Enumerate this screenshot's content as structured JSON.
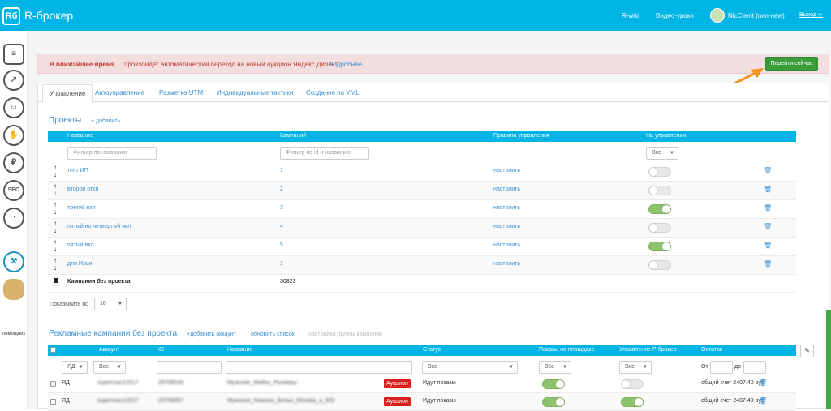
{
  "header": {
    "logo_text": "Rб",
    "brand": "R-брокер",
    "nav_wiki": "R-wiki",
    "nav_video": "Видео-уроки",
    "user": "NicClient (nxn-new)",
    "logout": "Выход"
  },
  "sidebar": {
    "icons": [
      "document-icon",
      "chart-icon",
      "user-icon",
      "thumbs-up-icon",
      "ruble-icon",
      "seo-icon",
      "speedometer-icon",
      "hammer-icon",
      "assistant-avatar-icon"
    ],
    "seo_label": "SEO",
    "ruble_label": "₽",
    "assistant_label": "помощник"
  },
  "alert": {
    "bold": "В ближайшее время",
    "text": "произойдет автоматический переход на новый аукцион Яндекс Директ",
    "link": "подробнее",
    "button": "Перейти сейчас"
  },
  "tabs": [
    "Управление",
    "Автоуправление",
    "Разметка UTM",
    "Индивидуальные тактики",
    "Создание по YML"
  ],
  "projects": {
    "title": "Проекты",
    "add": "+ добавить",
    "columns": [
      "Название",
      "Кампаний",
      "Правила управления",
      "На управлении"
    ],
    "filter_name_placeholder": "Фильтр по названию",
    "filter_id_placeholder": "Фильтр по id и названию",
    "filter_managed": "Все",
    "rows": [
      {
        "name": "тест ИП",
        "count": "1",
        "rule": "настроить",
        "on": false
      },
      {
        "name": "второй откл",
        "count": "2",
        "rule": "настроить",
        "on": false
      },
      {
        "name": "третий вкл",
        "count": "3",
        "rule": "настроить",
        "on": true
      },
      {
        "name": "пятый но четвертый вкл",
        "count": "4",
        "rule": "настроить",
        "on": false
      },
      {
        "name": "пятый вкл",
        "count": "5",
        "rule": "настроить",
        "on": true
      },
      {
        "name": "для Ильи",
        "count": "1",
        "rule": "настроить",
        "on": false
      }
    ],
    "no_project_label": "Кампании без проекта",
    "no_project_count": "30823",
    "per_page_label": "Показывать по",
    "per_page_value": "10"
  },
  "campaigns": {
    "title": "Рекламные кампании без проекта",
    "add_account": "+добавить аккаунт",
    "refresh": "обновить список",
    "group_settings": "настройка группы кампаний",
    "columns": [
      "Аккаунт",
      "ID",
      "Название",
      "Статус",
      "Показы на площадке",
      "Управление Р-брокер",
      "Остаток"
    ],
    "filter_account": "ЯД",
    "filter_all": "Все",
    "filter_from": "От",
    "filter_to": "до",
    "rows": [
      {
        "platform": "ЯД",
        "account": "superman12017",
        "id": "29708049",
        "name": "Мужские_Майки_Размеры",
        "badge": "Аукцион",
        "status": "Идут показы",
        "shows": true,
        "managed": false,
        "balance": "общий счет 2407.40 руб"
      },
      {
        "platform": "ЯД",
        "account": "superman12017",
        "id": "29708067",
        "name": "Мужское_Нижнее_Белье_Москва_и_МО",
        "badge": "Аукцион",
        "status": "Идут показы",
        "shows": true,
        "managed": true,
        "balance": "общий счет 2407.40 руб"
      }
    ]
  },
  "colors": {
    "primary": "#00b4e6",
    "link": "#3a8fd1",
    "alert_bg": "#f2dede",
    "alert_text": "#c0392b",
    "button_green": "#3a9d3a",
    "toggle_on": "#8ec26f",
    "badge_red": "#d9201f",
    "arrow": "#f39422"
  }
}
